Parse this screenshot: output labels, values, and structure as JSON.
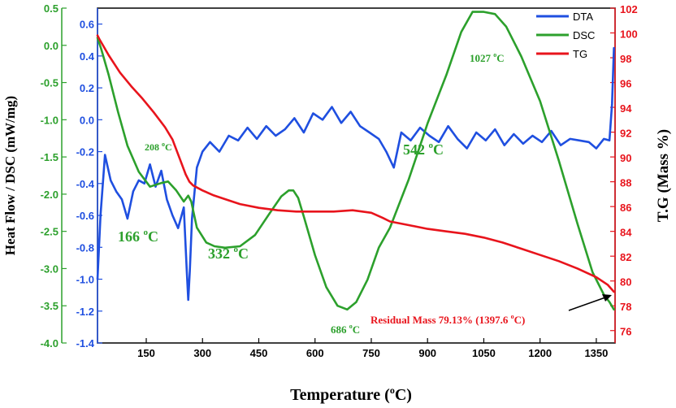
{
  "chart_data": {
    "type": "line",
    "xlabel": "Temperature (°C)",
    "xlabel_parts": {
      "main": "Temperature (",
      "sup": "o",
      "tail": "C)"
    },
    "ylabel_left_outer": "Heat Flow / DSC (mW/mg)",
    "ylabel_right": "T.G (Mass %)",
    "xlim": [
      20,
      1400
    ],
    "x_ticks": [
      150,
      300,
      450,
      600,
      750,
      900,
      1050,
      1200,
      1350
    ],
    "axes": {
      "dsc": {
        "ylim": [
          -4.0,
          0.5
        ],
        "ticks": [
          -4.0,
          -3.5,
          -3.0,
          -2.5,
          -2.0,
          -1.5,
          -1.0,
          -0.5,
          0.0,
          0.5
        ],
        "color": "#2ca02c"
      },
      "dta": {
        "ylim": [
          -1.4,
          0.7
        ],
        "ticks": [
          -1.4,
          -1.2,
          -1.0,
          -0.8,
          -0.6,
          -0.4,
          -0.2,
          0.0,
          0.2,
          0.4,
          0.6
        ],
        "color": "#1f4fe0"
      },
      "tg": {
        "ylim": [
          75,
          102
        ],
        "ticks": [
          76,
          78,
          80,
          82,
          84,
          86,
          88,
          90,
          92,
          94,
          96,
          98,
          100,
          102
        ],
        "color": "#e8141c"
      }
    },
    "legend": {
      "placement": "top-right",
      "entries": [
        {
          "name": "DTA",
          "color": "#1f4fe0"
        },
        {
          "name": "DSC",
          "color": "#2ca02c"
        },
        {
          "name": "TG",
          "color": "#e8141c"
        }
      ]
    },
    "series": [
      {
        "name": "DTA",
        "axis": "dta",
        "x": [
          20,
          28,
          40,
          55,
          70,
          85,
          100,
          115,
          130,
          145,
          160,
          175,
          190,
          205,
          220,
          235,
          250,
          258,
          262,
          266,
          272,
          285,
          300,
          320,
          345,
          370,
          395,
          420,
          445,
          470,
          495,
          520,
          545,
          570,
          595,
          620,
          645,
          670,
          695,
          720,
          745,
          770,
          790,
          810,
          830,
          855,
          880,
          905,
          930,
          955,
          980,
          1005,
          1030,
          1055,
          1080,
          1105,
          1130,
          1155,
          1180,
          1205,
          1230,
          1255,
          1280,
          1305,
          1330,
          1350,
          1370,
          1385,
          1392,
          1397
        ],
        "y": [
          -1.0,
          -0.6,
          -0.22,
          -0.38,
          -0.45,
          -0.5,
          -0.62,
          -0.45,
          -0.38,
          -0.4,
          -0.28,
          -0.42,
          -0.32,
          -0.5,
          -0.6,
          -0.68,
          -0.55,
          -0.95,
          -1.13,
          -0.95,
          -0.62,
          -0.3,
          -0.2,
          -0.14,
          -0.2,
          -0.1,
          -0.13,
          -0.05,
          -0.12,
          -0.04,
          -0.1,
          -0.06,
          0.01,
          -0.08,
          0.04,
          0.0,
          0.08,
          -0.02,
          0.05,
          -0.04,
          -0.08,
          -0.12,
          -0.2,
          -0.3,
          -0.08,
          -0.13,
          -0.05,
          -0.1,
          -0.14,
          -0.04,
          -0.12,
          -0.18,
          -0.08,
          -0.13,
          -0.06,
          -0.16,
          -0.09,
          -0.15,
          -0.1,
          -0.14,
          -0.07,
          -0.16,
          -0.12,
          -0.13,
          -0.14,
          -0.18,
          -0.12,
          -0.13,
          0.1,
          0.45
        ]
      },
      {
        "name": "DSC",
        "axis": "dsc",
        "x": [
          20,
          30,
          50,
          75,
          100,
          130,
          160,
          190,
          208,
          230,
          250,
          262,
          270,
          285,
          310,
          332,
          360,
          400,
          440,
          480,
          510,
          530,
          542,
          555,
          570,
          600,
          630,
          660,
          686,
          710,
          740,
          770,
          800,
          850,
          900,
          950,
          990,
          1020,
          1050,
          1080,
          1110,
          1150,
          1200,
          1250,
          1300,
          1340,
          1370,
          1385,
          1397
        ],
        "y": [
          0.1,
          -0.05,
          -0.4,
          -0.9,
          -1.35,
          -1.7,
          -1.9,
          -1.85,
          -1.83,
          -1.95,
          -2.1,
          -2.02,
          -2.1,
          -2.45,
          -2.65,
          -2.7,
          -2.72,
          -2.7,
          -2.55,
          -2.25,
          -2.03,
          -1.95,
          -1.95,
          -2.05,
          -2.3,
          -2.82,
          -3.25,
          -3.5,
          -3.55,
          -3.45,
          -3.15,
          -2.72,
          -2.45,
          -1.8,
          -1.05,
          -0.4,
          0.18,
          0.45,
          0.45,
          0.42,
          0.25,
          -0.15,
          -0.75,
          -1.55,
          -2.4,
          -3.05,
          -3.35,
          -3.45,
          -3.55
        ]
      },
      {
        "name": "TG",
        "axis": "tg",
        "x": [
          20,
          25,
          50,
          80,
          110,
          140,
          170,
          200,
          220,
          240,
          255,
          265,
          275,
          300,
          330,
          360,
          400,
          450,
          500,
          550,
          600,
          650,
          700,
          750,
          780,
          800,
          850,
          900,
          950,
          1000,
          1050,
          1100,
          1150,
          1200,
          1250,
          1300,
          1350,
          1380,
          1397
        ],
        "y": [
          99.8,
          99.5,
          98.2,
          96.8,
          95.7,
          94.7,
          93.6,
          92.4,
          91.4,
          89.8,
          88.6,
          88.0,
          87.7,
          87.3,
          86.9,
          86.6,
          86.2,
          85.9,
          85.7,
          85.6,
          85.6,
          85.6,
          85.7,
          85.5,
          85.1,
          84.8,
          84.5,
          84.2,
          84.0,
          83.8,
          83.5,
          83.1,
          82.6,
          82.1,
          81.6,
          81.0,
          80.3,
          79.7,
          79.13
        ]
      }
    ],
    "annotations": {
      "a208": {
        "main": "208 ",
        "sup": "o",
        "tail": "C",
        "color": "#2ca02c"
      },
      "a166": {
        "main": "166 ",
        "sup": "o",
        "tail": "C",
        "color": "#2ca02c"
      },
      "a332": {
        "main": "332 ",
        "sup": "o",
        "tail": "C",
        "color": "#2ca02c"
      },
      "a542": {
        "main": "542 ",
        "sup": "o",
        "tail": "C",
        "color": "#2ca02c"
      },
      "a686": {
        "main": "686 ",
        "sup": "o",
        "tail": "C",
        "color": "#2ca02c"
      },
      "a1027": {
        "main": "1027 ",
        "sup": "o",
        "tail": "C",
        "color": "#2ca02c"
      },
      "residual": {
        "main": "Residual Mass 79.13% (1397.6 ",
        "sup": "o",
        "tail": "C)",
        "color": "#e8141c"
      }
    }
  }
}
